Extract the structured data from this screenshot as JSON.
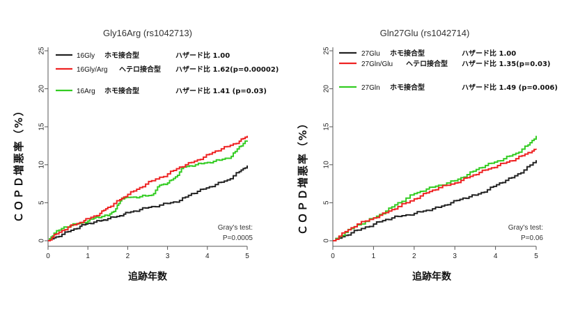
{
  "chart_data": [
    {
      "type": "line",
      "title": "Gly16Arg (rs1042713)",
      "xlabel": "追跡年数",
      "ylabel": "ＣＯＰＤ増悪率（%）",
      "xlim": [
        0,
        5
      ],
      "ylim": [
        0,
        25
      ],
      "xticks": [
        "0",
        "1",
        "2",
        "3",
        "4",
        "5"
      ],
      "yticks": [
        "0",
        "5",
        "10",
        "15",
        "20",
        "25"
      ],
      "legend_position": "top-left",
      "test_text": [
        "Gray's test:",
        "P=0.0005"
      ],
      "series": [
        {
          "name": "16Gly",
          "genotype": "ホモ接合型",
          "hr": "ハザード比 1.00",
          "color": "#222222",
          "points": [
            [
              0,
              0
            ],
            [
              0.2,
              0.5
            ],
            [
              0.5,
              1.2
            ],
            [
              0.8,
              1.9
            ],
            [
              1.0,
              2.3
            ],
            [
              1.3,
              2.6
            ],
            [
              1.5,
              2.9
            ],
            [
              1.8,
              3.3
            ],
            [
              2.0,
              3.7
            ],
            [
              2.3,
              4.1
            ],
            [
              2.6,
              4.5
            ],
            [
              3.0,
              4.9
            ],
            [
              3.3,
              5.3
            ],
            [
              3.6,
              6.2
            ],
            [
              3.9,
              6.8
            ],
            [
              4.2,
              7.4
            ],
            [
              4.5,
              8.0
            ],
            [
              4.8,
              9.1
            ],
            [
              5.0,
              9.9
            ]
          ]
        },
        {
          "name": "16Gly/Arg",
          "genotype": "ヘテロ接合型",
          "hr": "ハザード比 1.62(p=0.00002)",
          "color": "#ee2222",
          "points": [
            [
              0,
              0
            ],
            [
              0.2,
              0.9
            ],
            [
              0.5,
              1.8
            ],
            [
              0.8,
              2.4
            ],
            [
              1.0,
              2.9
            ],
            [
              1.3,
              3.6
            ],
            [
              1.5,
              4.4
            ],
            [
              1.8,
              5.4
            ],
            [
              2.0,
              6.1
            ],
            [
              2.3,
              7.0
            ],
            [
              2.6,
              7.9
            ],
            [
              3.0,
              8.8
            ],
            [
              3.3,
              9.7
            ],
            [
              3.6,
              10.3
            ],
            [
              3.9,
              11.0
            ],
            [
              4.2,
              11.8
            ],
            [
              4.5,
              12.4
            ],
            [
              4.8,
              13.1
            ],
            [
              5.0,
              13.8
            ]
          ]
        },
        {
          "name": "16Arg",
          "genotype": "ホモ接合型",
          "hr": "ハザード比 1.41 (p=0.03)",
          "color": "#33cc22",
          "points": [
            [
              0,
              0
            ],
            [
              0.15,
              1.0
            ],
            [
              0.4,
              1.8
            ],
            [
              0.7,
              2.2
            ],
            [
              1.0,
              2.6
            ],
            [
              1.2,
              3.1
            ],
            [
              1.5,
              3.3
            ],
            [
              1.7,
              4.2
            ],
            [
              1.85,
              5.6
            ],
            [
              2.0,
              5.7
            ],
            [
              2.3,
              5.8
            ],
            [
              2.6,
              6.0
            ],
            [
              2.8,
              7.3
            ],
            [
              3.0,
              7.6
            ],
            [
              3.2,
              8.4
            ],
            [
              3.4,
              9.7
            ],
            [
              3.7,
              10.0
            ],
            [
              4.0,
              10.3
            ],
            [
              4.3,
              10.6
            ],
            [
              4.6,
              11.1
            ],
            [
              4.8,
              12.4
            ],
            [
              5.0,
              13.2
            ]
          ]
        }
      ]
    },
    {
      "type": "line",
      "title": "Gln27Glu (rs1042714)",
      "xlabel": "追跡年数",
      "ylabel": "ＣＯＰＤ増悪率（%）",
      "xlim": [
        0,
        5
      ],
      "ylim": [
        0,
        25
      ],
      "xticks": [
        "0",
        "1",
        "2",
        "3",
        "4",
        "5"
      ],
      "yticks": [
        "0",
        "5",
        "10",
        "15",
        "20",
        "25"
      ],
      "legend_position": "top-left",
      "test_text": [
        "Gray's test:",
        "P=0.06"
      ],
      "series": [
        {
          "name": "27Glu",
          "genotype": "ホモ接合型",
          "hr": "ハザード比 1.00",
          "color": "#222222",
          "points": [
            [
              0,
              0
            ],
            [
              0.3,
              0.7
            ],
            [
              0.6,
              1.4
            ],
            [
              1.0,
              2.2
            ],
            [
              1.3,
              2.8
            ],
            [
              1.6,
              3.2
            ],
            [
              2.0,
              3.6
            ],
            [
              2.3,
              4.0
            ],
            [
              2.6,
              4.4
            ],
            [
              2.9,
              5.0
            ],
            [
              3.2,
              5.6
            ],
            [
              3.5,
              6.0
            ],
            [
              3.8,
              6.7
            ],
            [
              4.1,
              7.6
            ],
            [
              4.4,
              8.3
            ],
            [
              4.7,
              9.3
            ],
            [
              5.0,
              10.6
            ]
          ]
        },
        {
          "name": "27Gln/Glu",
          "genotype": "ヘテロ接合型",
          "hr": "ハザード比 1.35(p=0.03)",
          "color": "#ee2222",
          "points": [
            [
              0,
              0
            ],
            [
              0.3,
              1.2
            ],
            [
              0.6,
              2.2
            ],
            [
              1.0,
              3.0
            ],
            [
              1.3,
              3.7
            ],
            [
              1.6,
              4.5
            ],
            [
              2.0,
              5.5
            ],
            [
              2.3,
              6.3
            ],
            [
              2.6,
              7.0
            ],
            [
              3.0,
              7.6
            ],
            [
              3.3,
              8.3
            ],
            [
              3.6,
              9.0
            ],
            [
              3.9,
              9.6
            ],
            [
              4.2,
              10.2
            ],
            [
              4.5,
              10.8
            ],
            [
              4.8,
              11.6
            ],
            [
              5.0,
              12.0
            ]
          ]
        },
        {
          "name": "27Gln",
          "genotype": "ホモ接合型",
          "hr": "ハザード比 1.49 (p=0.006)",
          "color": "#33cc22",
          "points": [
            [
              0,
              0
            ],
            [
              0.3,
              1.1
            ],
            [
              0.6,
              2.1
            ],
            [
              1.0,
              3.0
            ],
            [
              1.3,
              3.9
            ],
            [
              1.6,
              5.0
            ],
            [
              2.0,
              6.2
            ],
            [
              2.3,
              6.8
            ],
            [
              2.6,
              7.3
            ],
            [
              3.0,
              7.9
            ],
            [
              3.3,
              8.7
            ],
            [
              3.6,
              9.6
            ],
            [
              3.9,
              10.2
            ],
            [
              4.2,
              10.8
            ],
            [
              4.5,
              11.5
            ],
            [
              4.8,
              12.6
            ],
            [
              5.0,
              13.8
            ]
          ]
        }
      ]
    }
  ]
}
